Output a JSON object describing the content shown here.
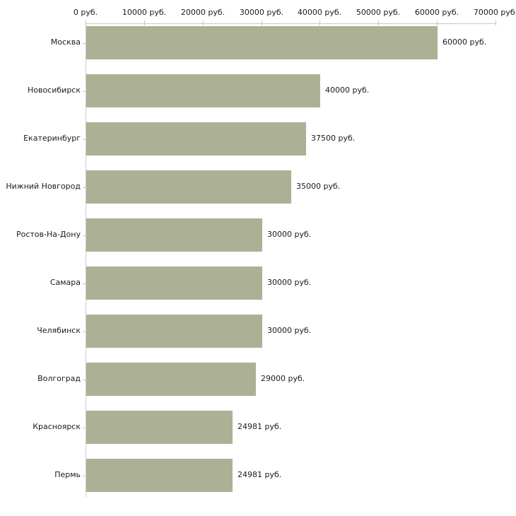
{
  "chart_data": {
    "type": "bar",
    "orientation": "horizontal",
    "title": "",
    "xlabel": "",
    "ylabel": "",
    "unit": "руб.",
    "categories": [
      "Москва",
      "Новосибирск",
      "Екатеринбург",
      "Нижний Новгород",
      "Ростов-На-Дону",
      "Самара",
      "Челябинск",
      "Волгоград",
      "Красноярск",
      "Пермь"
    ],
    "values": [
      60000,
      40000,
      37500,
      35000,
      30000,
      30000,
      30000,
      29000,
      24981,
      24981
    ],
    "value_labels": [
      "60000 руб.",
      "40000 руб.",
      "37500 руб.",
      "35000 руб.",
      "30000 руб.",
      "30000 руб.",
      "30000 руб.",
      "29000 руб.",
      "24981 руб.",
      "24981 руб."
    ],
    "x_ticks": [
      0,
      10000,
      20000,
      30000,
      40000,
      50000,
      60000,
      70000
    ],
    "x_tick_labels": [
      "0 руб.",
      "10000 руб.",
      "20000 руб.",
      "30000 руб.",
      "40000 руб.",
      "50000 руб.",
      "60000 руб.",
      "70000 руб."
    ],
    "xlim": [
      0,
      70000
    ],
    "grid": false,
    "legend": "none",
    "axis_position": "top",
    "colors": {
      "bar": "#acb196",
      "axis_line": "#c9c9c9",
      "tick": "#c9c6a0",
      "text": "#1a1a1a",
      "background": "#ffffff"
    }
  }
}
